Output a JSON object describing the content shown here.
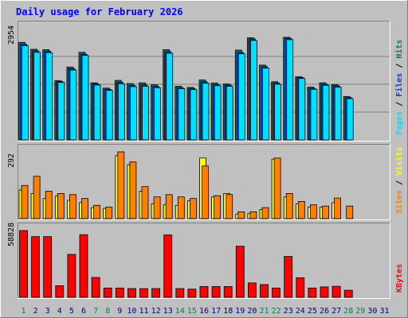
{
  "title": "Daily usage for February 2026",
  "colors": {
    "background": "#c0c0c0",
    "title": "#0000ff",
    "hits": "#00805c",
    "files": "#0040ff",
    "pages": "#00e0ff",
    "visits": "#ffff00",
    "sites": "#ff8000",
    "kbytes": "#ff0000",
    "weekend_day": "#00805c",
    "weekday": "#000080"
  },
  "chart_data": {
    "type": "bar",
    "x": [
      "1",
      "2",
      "3",
      "4",
      "5",
      "6",
      "7",
      "8",
      "9",
      "10",
      "11",
      "12",
      "13",
      "14",
      "15",
      "16",
      "17",
      "18",
      "19",
      "20",
      "21",
      "22",
      "23",
      "24",
      "25",
      "26",
      "27",
      "28",
      "29",
      "30",
      "31"
    ],
    "weekend_days": [
      "1",
      "7",
      "8",
      "14",
      "15",
      "21",
      "22",
      "28",
      "29"
    ],
    "panels": [
      {
        "name": "hits_files_pages",
        "ymax_label": "2954",
        "ylim": [
          0,
          2954
        ],
        "legend": [
          "Pages",
          "Files",
          "Hits"
        ],
        "series": [
          {
            "name": "Hits",
            "values": [
              2590,
              2405,
              2395,
              1570,
              1935,
              2325,
              1515,
              1375,
              1580,
              1495,
              1515,
              1460,
              2395,
              1425,
              1395,
              1590,
              1510,
              1485,
              2385,
              2710,
              1985,
              1545,
              2725,
              1675,
              1400,
              1515,
              1470,
              1150,
              0,
              0,
              0
            ]
          },
          {
            "name": "Files",
            "values": [
              2540,
              2365,
              2355,
              1550,
              1890,
              2275,
              1485,
              1345,
              1530,
              1450,
              1465,
              1420,
              2345,
              1390,
              1365,
              1545,
              1470,
              1455,
              2325,
              2680,
              1945,
              1510,
              2695,
              1655,
              1370,
              1480,
              1435,
              1120,
              0,
              0,
              0
            ]
          },
          {
            "name": "Pages",
            "values": [
              2500,
              2325,
              2315,
              1525,
              1855,
              2240,
              1455,
              1315,
              1490,
              1415,
              1425,
              1385,
              2300,
              1360,
              1335,
              1505,
              1440,
              1425,
              2285,
              2640,
              1905,
              1480,
              2660,
              1630,
              1345,
              1450,
              1400,
              1095,
              0,
              0,
              0
            ]
          }
        ]
      },
      {
        "name": "visits_sites",
        "ymax_label": "292",
        "ylim": [
          0,
          292
        ],
        "legend": [
          "Sites",
          "Visits"
        ],
        "series": [
          {
            "name": "Visits",
            "values": [
              125,
              110,
              88,
              98,
              80,
              70,
              48,
              45,
              275,
              235,
              120,
              65,
              60,
              58,
              78,
              265,
              95,
              110,
              20,
              22,
              40,
              260,
              95,
              65,
              50,
              50,
              70,
              0,
              0,
              0,
              0
            ]
          },
          {
            "name": "Sites",
            "values": [
              145,
              185,
              120,
              110,
              105,
              88,
              58,
              50,
              292,
              248,
              140,
              95,
              105,
              95,
              88,
              230,
              100,
              105,
              30,
              30,
              48,
              265,
              110,
              75,
              60,
              55,
              90,
              55,
              0,
              0,
              0
            ]
          }
        ]
      },
      {
        "name": "kbytes",
        "ymax_label": "58828",
        "ylim": [
          0,
          58828
        ],
        "legend": [
          "KBytes"
        ],
        "series": [
          {
            "name": "KBytes",
            "values": [
              58828,
              53500,
              53500,
              10200,
              37800,
              55200,
              17500,
              8200,
              8200,
              7700,
              7700,
              7700,
              55000,
              7700,
              7200,
              9500,
              9500,
              9500,
              45000,
              12700,
              11200,
              8200,
              36000,
              17200,
              8200,
              9200,
              9700,
              6200,
              0,
              0,
              0
            ]
          }
        ]
      }
    ]
  }
}
